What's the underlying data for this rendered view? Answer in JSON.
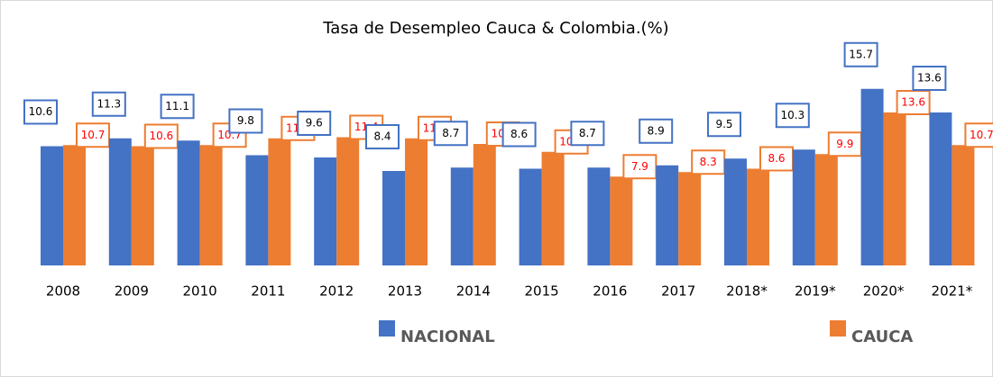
{
  "chart_data": {
    "type": "bar",
    "title": "Tasa de Desempleo Cauca  & Colombia.(%)",
    "categories": [
      "2008",
      "2009",
      "2010",
      "2011",
      "2012",
      "2013",
      "2014",
      "2015",
      "2016",
      "2017",
      "2018*",
      "2019*",
      "2020*",
      "2021*"
    ],
    "series": [
      {
        "name": "NACIONAL",
        "color": "#4472c4",
        "values": [
          10.6,
          11.3,
          11.1,
          9.8,
          9.6,
          8.4,
          8.7,
          8.6,
          8.7,
          8.9,
          9.5,
          10.3,
          15.7,
          13.6
        ]
      },
      {
        "name": "CAUCA",
        "color": "#ed7d31",
        "values": [
          10.7,
          10.6,
          10.7,
          11.3,
          11.4,
          11.3,
          10.8,
          10.1,
          7.9,
          8.3,
          8.6,
          9.9,
          13.6,
          10.7
        ]
      }
    ],
    "ylim": [
      0,
      18
    ]
  }
}
